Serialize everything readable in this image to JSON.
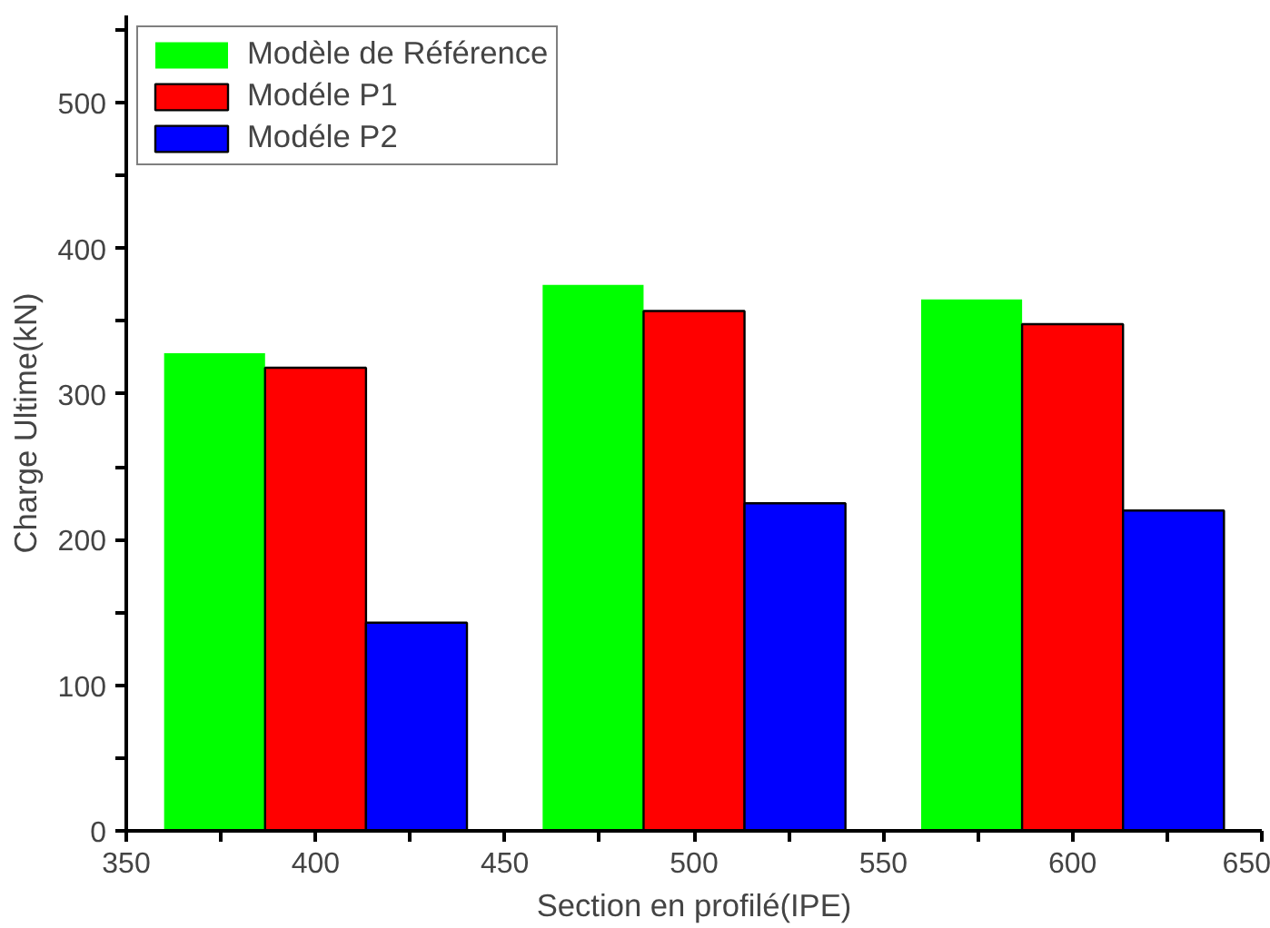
{
  "chart_data": {
    "type": "bar",
    "xlabel": "Section en profilé(IPE)",
    "ylabel": "Charge Ultime(kN)",
    "x": [
      400,
      500,
      600
    ],
    "series": [
      {
        "name": "Modèle de Référence",
        "color": "#00ff00",
        "values": [
          328,
          375,
          365
        ]
      },
      {
        "name": "Modéle P1",
        "color": "#ff0000",
        "values": [
          318,
          357,
          348
        ]
      },
      {
        "name": "Modéle P2",
        "color": "#0000ff",
        "values": [
          143,
          225,
          220
        ]
      }
    ],
    "xlim": [
      350,
      650
    ],
    "xticks": [
      350,
      {
        "value": 375,
        "label": null
      },
      400,
      {
        "value": 425,
        "label": null
      },
      450,
      {
        "value": 475,
        "label": null
      },
      500,
      {
        "value": 525,
        "label": null
      },
      550,
      {
        "value": 575,
        "label": null
      },
      600,
      {
        "value": 625,
        "label": null
      },
      650
    ],
    "ylim": [
      0,
      560
    ],
    "yticks": [
      0,
      {
        "value": 50,
        "label": null
      },
      100,
      {
        "value": 150,
        "label": null
      },
      200,
      {
        "value": 250,
        "label": null
      },
      300,
      {
        "value": 350,
        "label": null
      },
      400,
      {
        "value": 450,
        "label": null
      },
      500,
      {
        "value": 550,
        "label": null
      }
    ],
    "grid": false,
    "legend": "top left"
  }
}
